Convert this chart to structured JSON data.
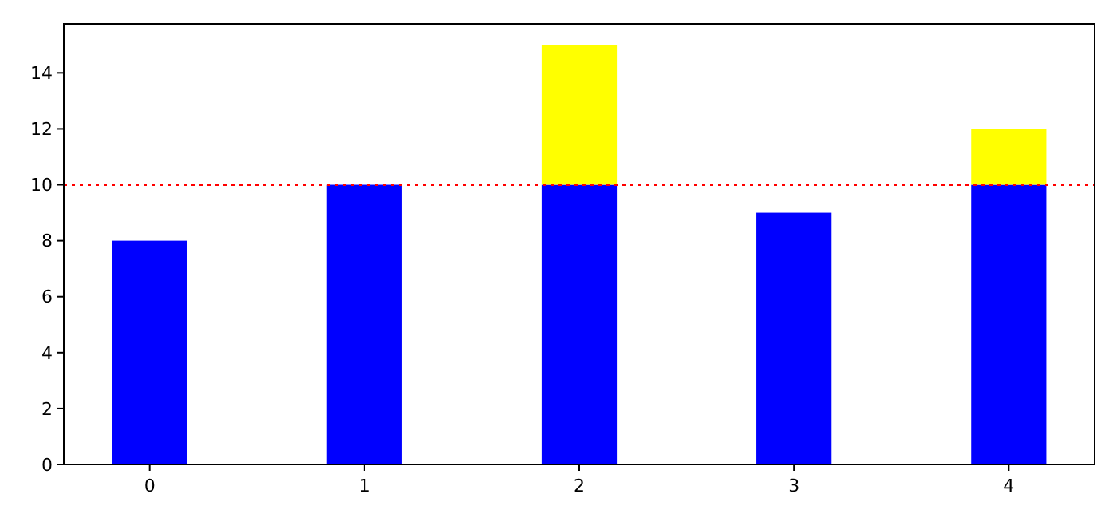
{
  "chart_data": {
    "type": "bar",
    "stacked": true,
    "categories": [
      "0",
      "1",
      "2",
      "3",
      "4"
    ],
    "series": [
      {
        "color": "#0000ff",
        "values": [
          8,
          10,
          10,
          9,
          10
        ]
      },
      {
        "color": "#ffff00",
        "values": [
          null,
          null,
          5,
          null,
          2
        ]
      }
    ],
    "ylim": [
      0,
      15.75
    ],
    "yticks": [
      0,
      2,
      4,
      6,
      8,
      10,
      12,
      14
    ],
    "ref_lines": [
      {
        "axis": "y",
        "value": 10,
        "color": "#ff0000",
        "line_style": "dotted"
      }
    ],
    "grid": false
  }
}
